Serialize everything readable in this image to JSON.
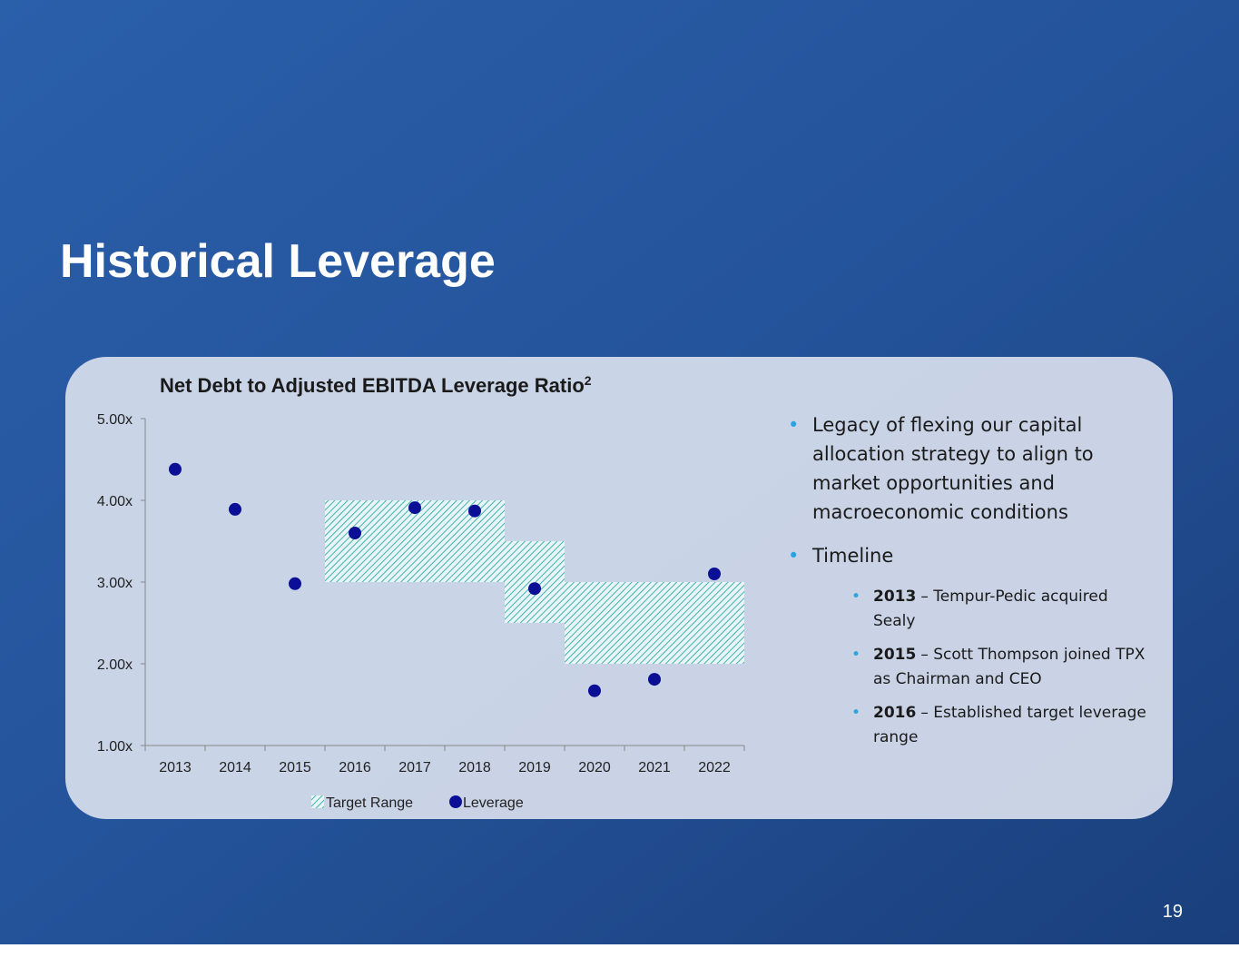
{
  "slide": {
    "title": "Historical Leverage",
    "page_number": "19"
  },
  "chart_data": {
    "type": "range-scatter",
    "title": "Net Debt to Adjusted EBITDA Leverage Ratio",
    "title_superscript": "2",
    "categories": [
      "2013",
      "2014",
      "2015",
      "2016",
      "2017",
      "2018",
      "2019",
      "2020",
      "2021",
      "2022"
    ],
    "series": [
      {
        "name": "Target Range",
        "color": "#3fb3b0",
        "low": [
          null,
          null,
          null,
          3,
          3,
          3,
          2.5,
          2,
          2,
          2
        ],
        "high": [
          null,
          null,
          null,
          4,
          4,
          4,
          3.5,
          3,
          3,
          3
        ]
      },
      {
        "name": "Leverage",
        "color": "#0a0f96",
        "values": [
          4.38,
          3.89,
          2.98,
          3.6,
          3.91,
          3.87,
          2.92,
          1.67,
          1.81,
          3.1
        ]
      }
    ],
    "ylim": [
      1,
      5
    ],
    "yticks": [
      {
        "value": 1,
        "label": "1.00x"
      },
      {
        "value": 2,
        "label": "2.00x"
      },
      {
        "value": 3,
        "label": "3.00x"
      },
      {
        "value": 4,
        "label": "4.00x"
      },
      {
        "value": 5,
        "label": "5.00x"
      }
    ],
    "legend": "bottom"
  },
  "bullets": [
    {
      "text": "Legacy of flexing our capital allocation strategy to align to market opportunities and macroeconomic conditions"
    },
    {
      "text": "Timeline",
      "sub": [
        {
          "bold": "2013",
          "text": "– Tempur-Pedic acquired Sealy"
        },
        {
          "bold": "2015",
          "text": "– Scott Thompson joined TPX as Chairman and CEO"
        },
        {
          "bold": "2016",
          "text": "– Established target leverage range"
        }
      ]
    }
  ]
}
